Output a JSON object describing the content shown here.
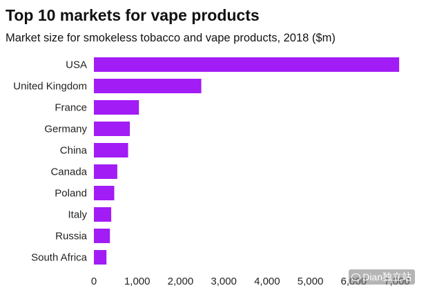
{
  "chart_data": {
    "type": "bar",
    "orientation": "horizontal",
    "title": "Top 10 markets for vape products",
    "subtitle": "Market size for smokeless tobacco and vape products, 2018 ($m)",
    "categories": [
      "USA",
      "United Kingdom",
      "France",
      "Germany",
      "China",
      "Canada",
      "Poland",
      "Italy",
      "Russia",
      "South Africa"
    ],
    "values": [
      7050,
      2480,
      1040,
      830,
      790,
      540,
      470,
      400,
      370,
      290
    ],
    "xlim": [
      0,
      7000
    ],
    "xticks": [
      "0",
      "1,000",
      "2,000",
      "3,000",
      "4,000",
      "5,000",
      "6,000",
      "7,000"
    ],
    "xtick_values": [
      0,
      1000,
      2000,
      3000,
      4000,
      5000,
      6000,
      7000
    ],
    "bar_color": "#a21cf5",
    "grid": false,
    "legend": "none"
  },
  "watermark": {
    "text": "Dian独立站",
    "icon": "wechat-icon"
  }
}
